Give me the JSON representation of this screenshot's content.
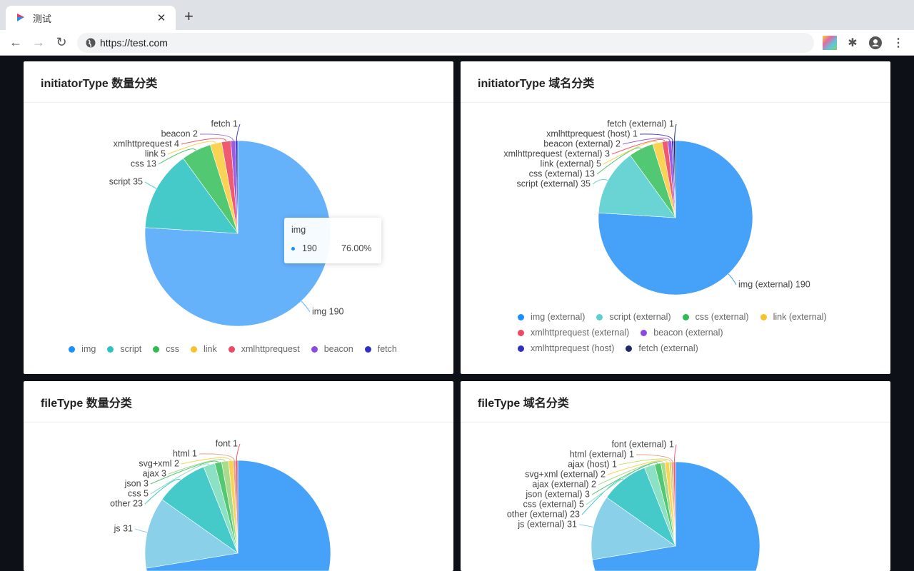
{
  "browser": {
    "tab_title": "测试",
    "url": "https://test.com",
    "icons": [
      "back-icon",
      "forward-icon",
      "reload-icon",
      "globe-icon",
      "extension-icon",
      "puzzle-icon",
      "account-icon",
      "menu-icon"
    ]
  },
  "tooltip": {
    "title": "img",
    "value": "190",
    "percent": "76.00%",
    "color": "#1890ff"
  },
  "chart_data": [
    {
      "type": "pie",
      "title": "initiatorType 数量分类",
      "legend": "bottom",
      "show_legend": true,
      "slices": [
        {
          "name": "img",
          "value": 190,
          "color": "#65b2fb"
        },
        {
          "name": "script",
          "value": 35,
          "color": "#45c9c9"
        },
        {
          "name": "css",
          "value": 13,
          "color": "#52c872"
        },
        {
          "name": "link",
          "value": 5,
          "color": "#fad254"
        },
        {
          "name": "xmlhttprequest",
          "value": 4,
          "color": "#f05a70"
        },
        {
          "name": "beacon",
          "value": 2,
          "color": "#9c5be0"
        },
        {
          "name": "fetch",
          "value": 1,
          "color": "#3a3ad0"
        }
      ],
      "legend_colors": [
        "#1890ff",
        "#2fc2c2",
        "#2fbb4f",
        "#f8c22c",
        "#ef4864",
        "#8c4be0",
        "#3030c0"
      ]
    },
    {
      "type": "pie",
      "title": "initiatorType 域名分类",
      "legend": "bottom",
      "show_legend": true,
      "slices": [
        {
          "name": "img (external)",
          "value": 190,
          "color": "#45a2f8"
        },
        {
          "name": "script (external)",
          "value": 35,
          "color": "#6ad3d3"
        },
        {
          "name": "css (external)",
          "value": 13,
          "color": "#52c872"
        },
        {
          "name": "link (external)",
          "value": 5,
          "color": "#fad254"
        },
        {
          "name": "xmlhttprequest (external)",
          "value": 3,
          "color": "#f05a70"
        },
        {
          "name": "beacon (external)",
          "value": 2,
          "color": "#9c5be0"
        },
        {
          "name": "xmlhttprequest (host)",
          "value": 1,
          "color": "#3a3ad0"
        },
        {
          "name": "fetch (external)",
          "value": 1,
          "color": "#1e2a6a"
        }
      ],
      "legend_colors": [
        "#1890ff",
        "#5ccfcf",
        "#2fbb4f",
        "#f8c22c",
        "#ef4864",
        "#8c4be0",
        "#3030c0",
        "#1e2a6a"
      ]
    },
    {
      "type": "pie",
      "title": "fileType 数量分类",
      "legend": "bottom",
      "show_legend": false,
      "slices": [
        {
          "name": "",
          "value": 181,
          "color": "#45a2f8"
        },
        {
          "name": "js",
          "value": 31,
          "color": "#8ad0e8"
        },
        {
          "name": "other",
          "value": 23,
          "color": "#45c9c9"
        },
        {
          "name": "css",
          "value": 5,
          "color": "#8ce0c3"
        },
        {
          "name": "json",
          "value": 3,
          "color": "#52c872"
        },
        {
          "name": "ajax",
          "value": 3,
          "color": "#a8dc8a"
        },
        {
          "name": "svg+xml",
          "value": 2,
          "color": "#fad254"
        },
        {
          "name": "html",
          "value": 1,
          "color": "#e8a080"
        },
        {
          "name": "font",
          "value": 1,
          "color": "#f05a70"
        }
      ]
    },
    {
      "type": "pie",
      "title": "fileType 域名分类",
      "legend": "bottom",
      "show_legend": false,
      "slices": [
        {
          "name": "",
          "value": 181,
          "color": "#45a2f8"
        },
        {
          "name": "js (external)",
          "value": 31,
          "color": "#8ad0e8"
        },
        {
          "name": "other (external)",
          "value": 23,
          "color": "#45c9c9"
        },
        {
          "name": "css (external)",
          "value": 5,
          "color": "#8ce0c3"
        },
        {
          "name": "json (external)",
          "value": 3,
          "color": "#52c872"
        },
        {
          "name": "ajax (external)",
          "value": 2,
          "color": "#a8dc8a"
        },
        {
          "name": "svg+xml (external)",
          "value": 2,
          "color": "#fad254"
        },
        {
          "name": "ajax (host)",
          "value": 1,
          "color": "#c8e070"
        },
        {
          "name": "html (external)",
          "value": 1,
          "color": "#e8a080"
        },
        {
          "name": "font (external)",
          "value": 1,
          "color": "#f05a70"
        }
      ]
    }
  ]
}
